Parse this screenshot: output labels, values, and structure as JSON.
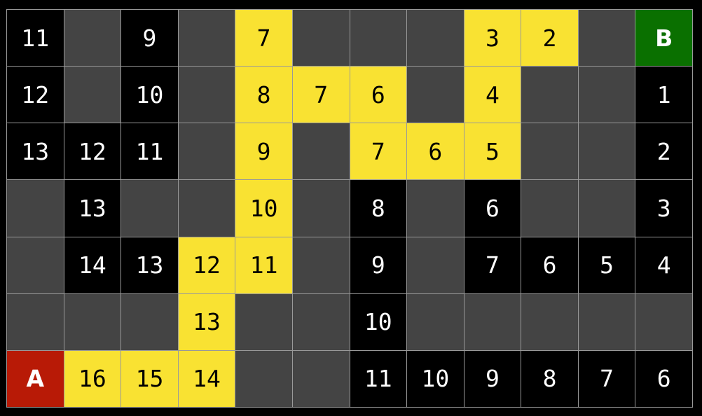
{
  "legend": {
    "wall": "#444444",
    "path": "#f9e232",
    "visited": "#000000",
    "start": "#b81a06",
    "goal": "#0a7000"
  },
  "rows": [
    [
      [
        "11",
        "b"
      ],
      [
        "",
        "w"
      ],
      [
        "9",
        "b"
      ],
      [
        "",
        "w"
      ],
      [
        "7",
        "y"
      ],
      [
        "",
        "w"
      ],
      [
        "",
        "w"
      ],
      [
        "",
        "w"
      ],
      [
        "3",
        "y"
      ],
      [
        "2",
        "y"
      ],
      [
        "",
        "w"
      ],
      [
        "B",
        "g"
      ]
    ],
    [
      [
        "12",
        "b"
      ],
      [
        "",
        "w"
      ],
      [
        "10",
        "b"
      ],
      [
        "",
        "w"
      ],
      [
        "8",
        "y"
      ],
      [
        "7",
        "y"
      ],
      [
        "6",
        "y"
      ],
      [
        "",
        "w"
      ],
      [
        "4",
        "y"
      ],
      [
        "",
        "w"
      ],
      [
        "",
        "w"
      ],
      [
        "1",
        "b"
      ]
    ],
    [
      [
        "13",
        "b"
      ],
      [
        "12",
        "b"
      ],
      [
        "11",
        "b"
      ],
      [
        "",
        "w"
      ],
      [
        "9",
        "y"
      ],
      [
        "",
        "w"
      ],
      [
        "7",
        "y"
      ],
      [
        "6",
        "y"
      ],
      [
        "5",
        "y"
      ],
      [
        "",
        "w"
      ],
      [
        "",
        "w"
      ],
      [
        "2",
        "b"
      ]
    ],
    [
      [
        "",
        "w"
      ],
      [
        "13",
        "b"
      ],
      [
        "",
        "w"
      ],
      [
        "",
        "w"
      ],
      [
        "10",
        "y"
      ],
      [
        "",
        "w"
      ],
      [
        "8",
        "b"
      ],
      [
        "",
        "w"
      ],
      [
        "6",
        "b"
      ],
      [
        "",
        "w"
      ],
      [
        "",
        "w"
      ],
      [
        "3",
        "b"
      ]
    ],
    [
      [
        "",
        "w"
      ],
      [
        "14",
        "b"
      ],
      [
        "13",
        "b"
      ],
      [
        "12",
        "y"
      ],
      [
        "11",
        "y"
      ],
      [
        "",
        "w"
      ],
      [
        "9",
        "b"
      ],
      [
        "",
        "w"
      ],
      [
        "7",
        "b"
      ],
      [
        "6",
        "b"
      ],
      [
        "5",
        "b"
      ],
      [
        "4",
        "b"
      ]
    ],
    [
      [
        "",
        "w"
      ],
      [
        "",
        "w"
      ],
      [
        "",
        "w"
      ],
      [
        "13",
        "y"
      ],
      [
        "",
        "w"
      ],
      [
        "",
        "w"
      ],
      [
        "10",
        "b"
      ],
      [
        "",
        "w"
      ],
      [
        "",
        "w"
      ],
      [
        "",
        "w"
      ],
      [
        "",
        "w"
      ],
      [
        "",
        "w"
      ]
    ],
    [
      [
        "A",
        "a"
      ],
      [
        "16",
        "y"
      ],
      [
        "15",
        "y"
      ],
      [
        "14",
        "y"
      ],
      [
        "",
        "w"
      ],
      [
        "",
        "w"
      ],
      [
        "11",
        "b"
      ],
      [
        "10",
        "b"
      ],
      [
        "9",
        "b"
      ],
      [
        "8",
        "b"
      ],
      [
        "7",
        "b"
      ],
      [
        "6",
        "b"
      ]
    ]
  ]
}
